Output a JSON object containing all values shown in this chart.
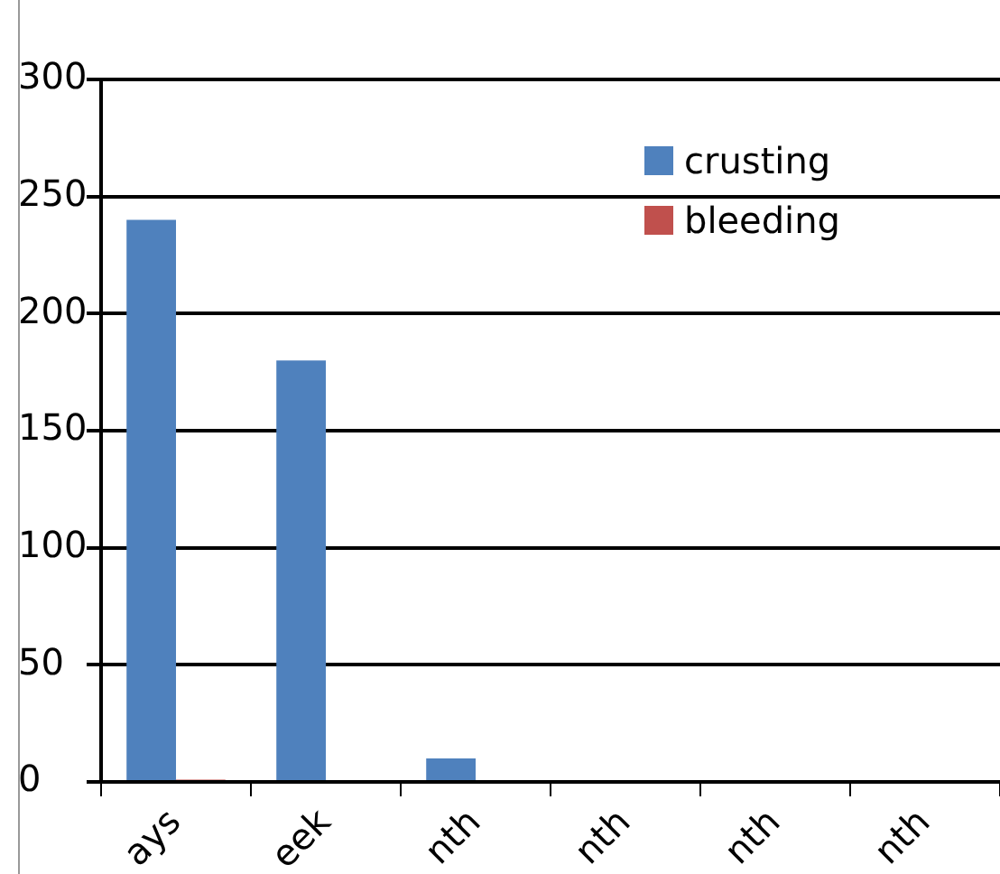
{
  "chart_data": {
    "type": "bar",
    "categories": [
      "ays",
      "eek",
      "nth",
      "nth",
      "nth",
      "nth"
    ],
    "series": [
      {
        "name": "crusting",
        "color": "#4f81bd",
        "values": [
          240,
          180,
          10,
          0,
          0,
          0
        ]
      },
      {
        "name": "bleeding",
        "color": "#c0504d",
        "values": [
          1,
          0,
          0,
          0,
          0,
          0
        ]
      }
    ],
    "ylim": [
      0,
      300
    ],
    "yticks": [
      0,
      50,
      100,
      150,
      200,
      250,
      300
    ],
    "grid": "y",
    "legend": "top right"
  }
}
